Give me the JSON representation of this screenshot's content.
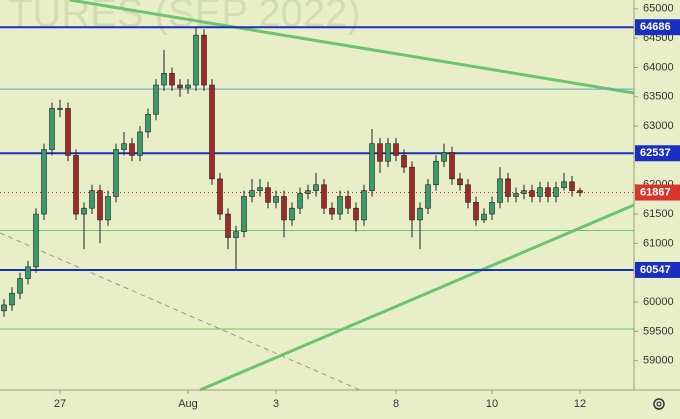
{
  "chart_data": {
    "type": "candlestick",
    "watermark": "TURES (SEP 2022)",
    "categories": [
      null,
      null,
      null,
      null,
      null,
      null,
      null,
      "27",
      null,
      null,
      null,
      null,
      null,
      null,
      null,
      null,
      null,
      null,
      null,
      null,
      null,
      null,
      null,
      "Aug",
      null,
      null,
      null,
      null,
      null,
      null,
      null,
      null,
      null,
      null,
      "3",
      null,
      null,
      null,
      null,
      null,
      null,
      null,
      null,
      null,
      null,
      null,
      null,
      null,
      null,
      "8",
      null,
      null,
      null,
      null,
      null,
      null,
      null,
      null,
      null,
      null,
      null,
      "10",
      null,
      null,
      null,
      null,
      null,
      null,
      null,
      null,
      null,
      null,
      "12"
    ],
    "open": [
      59850,
      59950,
      60150,
      60400,
      60600,
      61500,
      62600,
      63300,
      63300,
      62500,
      61500,
      61600,
      61900,
      61400,
      61800,
      62600,
      62700,
      62500,
      62900,
      63200,
      63700,
      63900,
      63700,
      63650,
      63700,
      64550,
      63700,
      62100,
      61500,
      61100,
      61200,
      61800,
      61900,
      61950,
      61700,
      61800,
      61400,
      61600,
      61850,
      61900,
      62000,
      61600,
      61500,
      61800,
      61600,
      61400,
      61900,
      62700,
      62400,
      62700,
      62500,
      62300,
      61400,
      61600,
      62000,
      62400,
      62550,
      62100,
      62000,
      61700,
      61400,
      61500,
      61700,
      62100,
      61800,
      61850,
      61900,
      61800,
      61950,
      61800,
      61950,
      62050,
      61900
    ],
    "high": [
      60050,
      60250,
      60500,
      60700,
      61600,
      62700,
      63400,
      63450,
      63400,
      62600,
      61700,
      62000,
      62000,
      61900,
      62700,
      62900,
      62800,
      63000,
      63300,
      63800,
      64300,
      64000,
      63800,
      63800,
      64700,
      64650,
      63800,
      62200,
      61600,
      61300,
      61900,
      62100,
      62100,
      62050,
      61900,
      61900,
      61700,
      61950,
      62000,
      62200,
      62100,
      61700,
      61900,
      61900,
      61700,
      62000,
      62950,
      62800,
      62800,
      62800,
      62600,
      62400,
      61700,
      62100,
      62500,
      62700,
      62650,
      62200,
      62100,
      61800,
      61600,
      61800,
      62300,
      62200,
      61950,
      62000,
      62000,
      62050,
      62050,
      62050,
      62200,
      62150,
      61950
    ],
    "low": [
      59750,
      59850,
      60050,
      60300,
      60500,
      61400,
      62500,
      63150,
      62400,
      61400,
      60900,
      61500,
      61000,
      61300,
      61700,
      62500,
      62400,
      62400,
      62800,
      63100,
      63600,
      63600,
      63500,
      63550,
      63600,
      63600,
      62000,
      61400,
      60900,
      60550,
      61100,
      61700,
      61800,
      61600,
      61600,
      61100,
      61300,
      61500,
      61750,
      61800,
      61500,
      61400,
      61400,
      61500,
      61200,
      61300,
      61800,
      62200,
      62300,
      62400,
      62200,
      61100,
      60900,
      61500,
      61900,
      62300,
      62000,
      61900,
      61600,
      61300,
      61350,
      61400,
      61600,
      61700,
      61700,
      61750,
      61700,
      61700,
      61700,
      61700,
      61900,
      61800,
      61800
    ],
    "close": [
      59950,
      60150,
      60400,
      60600,
      61500,
      62600,
      63300,
      63300,
      62500,
      61500,
      61600,
      61900,
      61400,
      61800,
      62600,
      62700,
      62500,
      62900,
      63200,
      63700,
      63900,
      63700,
      63650,
      63700,
      64550,
      63700,
      62100,
      61500,
      61100,
      61200,
      61800,
      61900,
      61950,
      61700,
      61800,
      61400,
      61600,
      61850,
      61900,
      62000,
      61600,
      61500,
      61800,
      61600,
      61400,
      61900,
      62700,
      62400,
      62700,
      62500,
      62300,
      61400,
      61600,
      62000,
      62400,
      62550,
      62100,
      62000,
      61700,
      61400,
      61500,
      61700,
      62100,
      61800,
      61850,
      61900,
      61800,
      61950,
      61800,
      61950,
      62050,
      61900,
      61867
    ],
    "up_color": "#3a9a6a",
    "down_color": "#a02828",
    "ylim": [
      58500,
      65150
    ],
    "yticks": [
      59000,
      59500,
      60000,
      61000,
      61500,
      62000,
      63000,
      63500,
      64000,
      64500,
      65000
    ],
    "grid": false,
    "levels": [
      {
        "value": 64686,
        "color": "#1a2fc0",
        "labeled": true
      },
      {
        "value": 62537,
        "color": "#1a2fc0",
        "labeled": true
      },
      {
        "value": 60547,
        "color": "#1a2fc0",
        "labeled": true
      },
      {
        "value": 63630,
        "color": "#5fa6c8",
        "labeled": false
      },
      {
        "value": 61220,
        "color": "#6cc46c",
        "labeled": false
      },
      {
        "value": 59540,
        "color": "#6cc46c",
        "labeled": false
      }
    ],
    "current_price": {
      "value": 61867,
      "color": "#d9342b"
    }
  }
}
